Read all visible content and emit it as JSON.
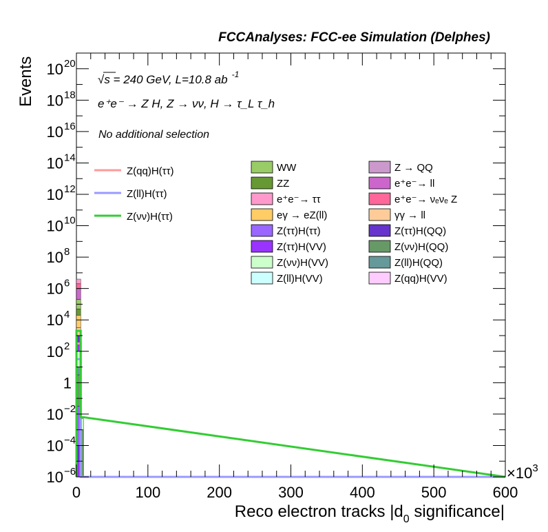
{
  "chart_data": {
    "type": "bar",
    "title": "FCCAnalyses: FCC-ee Simulation (Delphes)",
    "xlabel": "Reco electron tracks |d",
    "xlabel_sub": "0",
    "xlabel_tail": " significance|",
    "ylabel": "Events",
    "x_multiplier": "×10",
    "x_multiplier_exp": "3",
    "xlim": [
      0,
      600
    ],
    "ylim_log10": [
      -6,
      21
    ],
    "log_y": true,
    "grid": false,
    "x_ticks": [
      "0",
      "100",
      "200",
      "300",
      "400",
      "500",
      "600"
    ],
    "y_ticks": [
      {
        "exp": -6,
        "base": "10",
        "sup": "−6"
      },
      {
        "exp": -4,
        "base": "10",
        "sup": "−4"
      },
      {
        "exp": -2,
        "base": "10",
        "sup": "−2"
      },
      {
        "exp": 0,
        "base": "1",
        "sup": ""
      },
      {
        "exp": 2,
        "base": "10",
        "sup": "2"
      },
      {
        "exp": 4,
        "base": "10",
        "sup": "4"
      },
      {
        "exp": 6,
        "base": "10",
        "sup": "6"
      },
      {
        "exp": 8,
        "base": "10",
        "sup": "8"
      },
      {
        "exp": 10,
        "base": "10",
        "sup": "10"
      },
      {
        "exp": 12,
        "base": "10",
        "sup": "12"
      },
      {
        "exp": 14,
        "base": "10",
        "sup": "14"
      },
      {
        "exp": 16,
        "base": "10",
        "sup": "16"
      },
      {
        "exp": 18,
        "base": "10",
        "sup": "18"
      },
      {
        "exp": 20,
        "base": "10",
        "sup": "20"
      }
    ],
    "annotations": {
      "energy_line": "√s = 240 GeV, L=10.8 ab",
      "energy_sup": "-1",
      "process_line": "e⁺e⁻ → Z H, Z → νν, H → τ_L τ_h",
      "selection": "No additional selection"
    },
    "legend_placement": "top-center",
    "signal_series": [
      {
        "name": "Z(qq)H(ττ)",
        "color": "#ff9999",
        "bins": [
          {
            "x": [
              0,
              6
            ],
            "log10": 2.5
          },
          {
            "x": [
              6,
              10
            ],
            "log10": -6
          }
        ]
      },
      {
        "name": "Z(ll)H(ττ)",
        "color": "#9999ff",
        "bins": [
          {
            "x": [
              0,
              6
            ],
            "log10": 1.5
          },
          {
            "x": [
              6,
              10
            ],
            "log10": -6
          }
        ]
      },
      {
        "name": "Z(νν)H(ττ)",
        "color": "#33cc33",
        "bins": [
          {
            "x": [
              0,
              6
            ],
            "log10": 3.3
          },
          {
            "x": [
              6,
              10
            ],
            "log10": -2.2
          }
        ]
      }
    ],
    "background_series": [
      {
        "name": "WW",
        "color": "#99cc66"
      },
      {
        "name": "Z → QQ",
        "color": "#cc99cc"
      },
      {
        "name": "ZZ",
        "color": "#669933"
      },
      {
        "name": "e⁺e⁻→ ll",
        "color": "#cc66cc"
      },
      {
        "name": "e⁺e⁻→ ττ",
        "color": "#ff99cc"
      },
      {
        "name": "e⁺e⁻→ νₑνₑ Z",
        "color": "#ff6699"
      },
      {
        "name": "eγ → eZ(ll)",
        "color": "#ffcc66"
      },
      {
        "name": "γγ → ll",
        "color": "#ffcc99"
      },
      {
        "name": "Z(ττ)H(ττ)",
        "color": "#9966ff"
      },
      {
        "name": "Z(ττ)H(QQ)",
        "color": "#6633cc"
      },
      {
        "name": "Z(ττ)H(VV)",
        "color": "#9933ff"
      },
      {
        "name": "Z(νν)H(QQ)",
        "color": "#669966"
      },
      {
        "name": "Z(νν)H(VV)",
        "color": "#ccffcc"
      },
      {
        "name": "Z(ll)H(QQ)",
        "color": "#669999"
      },
      {
        "name": "Z(ll)H(VV)",
        "color": "#ccffff"
      },
      {
        "name": "Z(qq)H(VV)",
        "color": "#ffccff"
      }
    ],
    "stack_bins": [
      {
        "x": [
          0,
          6
        ],
        "segments": [
          {
            "color": "#9933ff",
            "log10_from": -6,
            "log10_to": -5
          },
          {
            "color": "#6633cc",
            "log10_from": -5,
            "log10_to": -4
          },
          {
            "color": "#9966ff",
            "log10_from": -4,
            "log10_to": -1.5
          },
          {
            "color": "#669966",
            "log10_from": -1.5,
            "log10_to": 0.5
          },
          {
            "color": "#669999",
            "log10_from": 0.5,
            "log10_to": 1
          },
          {
            "color": "#ccffcc",
            "log10_from": 1,
            "log10_to": 2
          },
          {
            "color": "#9933ff",
            "log10_from": 2,
            "log10_to": 2.5
          },
          {
            "color": "#6633cc",
            "log10_from": 2.5,
            "log10_to": 3
          },
          {
            "color": "#ffcc99",
            "log10_from": 3,
            "log10_to": 3.5
          },
          {
            "color": "#ffcc66",
            "log10_from": 3.5,
            "log10_to": 4.3
          },
          {
            "color": "#669933",
            "log10_from": 4.3,
            "log10_to": 4.7
          },
          {
            "color": "#99cc66",
            "log10_from": 4.7,
            "log10_to": 5.3
          },
          {
            "color": "#cc66cc",
            "log10_from": 5.3,
            "log10_to": 6.0
          },
          {
            "color": "#ff6699",
            "log10_from": 6.0,
            "log10_to": 6.3
          },
          {
            "color": "#ff99cc",
            "log10_from": 6.3,
            "log10_to": 6.6
          }
        ]
      },
      {
        "x": [
          6,
          10
        ],
        "segments": [
          {
            "color": "#669966",
            "log10_from": -6,
            "log10_to": -3
          },
          {
            "color": "#ccffcc",
            "log10_from": -3,
            "log10_to": -2.3
          }
        ]
      }
    ]
  }
}
